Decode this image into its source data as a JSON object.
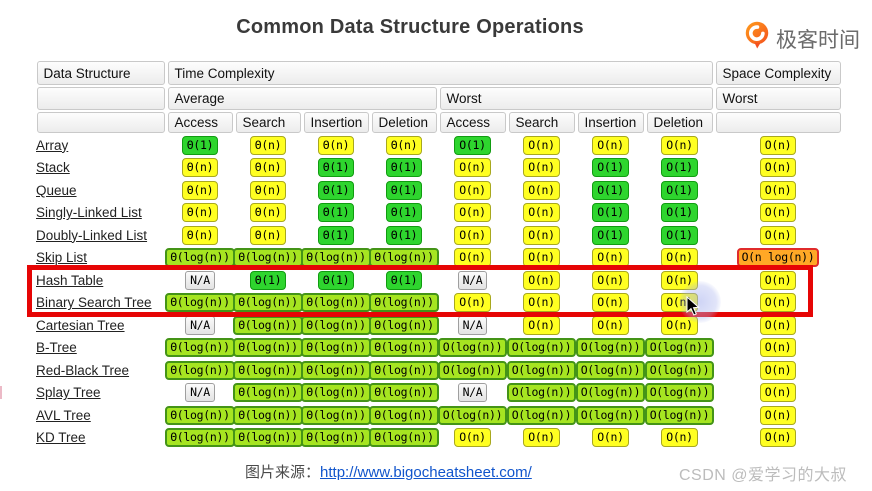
{
  "page": {
    "title": "Common Data Structure Operations",
    "brand": {
      "name": "极客时间",
      "icon": "geektime-logo",
      "color": "#f96300"
    },
    "footer": {
      "source_label": "图片来源：",
      "source_link": "http://www.bigocheatsheet.com/",
      "watermark": "CSDN @爱学习的大叔"
    }
  },
  "colors": {
    "constant_green": "#2ed52e",
    "linear_yellow": "#ffff21",
    "log_yellowgreen": "#a6e521",
    "nlogn_orange": "#ffa826",
    "na_gray": "#eeeeee",
    "highlight_red": "#e60505",
    "link_blue": "#1155cc"
  },
  "table": {
    "headers": {
      "data_structure": "Data Structure",
      "time_complexity": "Time Complexity",
      "space_complexity": "Space Complexity",
      "average": "Average",
      "worst_time": "Worst",
      "worst_space": "Worst",
      "ops": [
        "Access",
        "Search",
        "Insertion",
        "Deletion",
        "Access",
        "Search",
        "Insertion",
        "Deletion"
      ]
    },
    "rows": [
      {
        "name": "Array",
        "cells": [
          [
            "Θ(1)",
            "green"
          ],
          [
            "Θ(n)",
            "yellow"
          ],
          [
            "Θ(n)",
            "yellow"
          ],
          [
            "Θ(n)",
            "yellow"
          ],
          [
            "O(1)",
            "green"
          ],
          [
            "O(n)",
            "yellow"
          ],
          [
            "O(n)",
            "yellow"
          ],
          [
            "O(n)",
            "yellow"
          ],
          [
            "O(n)",
            "yellow"
          ]
        ]
      },
      {
        "name": "Stack",
        "cells": [
          [
            "Θ(n)",
            "yellow"
          ],
          [
            "Θ(n)",
            "yellow"
          ],
          [
            "Θ(1)",
            "green"
          ],
          [
            "Θ(1)",
            "green"
          ],
          [
            "O(n)",
            "yellow"
          ],
          [
            "O(n)",
            "yellow"
          ],
          [
            "O(1)",
            "green"
          ],
          [
            "O(1)",
            "green"
          ],
          [
            "O(n)",
            "yellow"
          ]
        ]
      },
      {
        "name": "Queue",
        "cells": [
          [
            "Θ(n)",
            "yellow"
          ],
          [
            "Θ(n)",
            "yellow"
          ],
          [
            "Θ(1)",
            "green"
          ],
          [
            "Θ(1)",
            "green"
          ],
          [
            "O(n)",
            "yellow"
          ],
          [
            "O(n)",
            "yellow"
          ],
          [
            "O(1)",
            "green"
          ],
          [
            "O(1)",
            "green"
          ],
          [
            "O(n)",
            "yellow"
          ]
        ]
      },
      {
        "name": "Singly-Linked List",
        "cells": [
          [
            "Θ(n)",
            "yellow"
          ],
          [
            "Θ(n)",
            "yellow"
          ],
          [
            "Θ(1)",
            "green"
          ],
          [
            "Θ(1)",
            "green"
          ],
          [
            "O(n)",
            "yellow"
          ],
          [
            "O(n)",
            "yellow"
          ],
          [
            "O(1)",
            "green"
          ],
          [
            "O(1)",
            "green"
          ],
          [
            "O(n)",
            "yellow"
          ]
        ]
      },
      {
        "name": "Doubly-Linked List",
        "cells": [
          [
            "Θ(n)",
            "yellow"
          ],
          [
            "Θ(n)",
            "yellow"
          ],
          [
            "Θ(1)",
            "green"
          ],
          [
            "Θ(1)",
            "green"
          ],
          [
            "O(n)",
            "yellow"
          ],
          [
            "O(n)",
            "yellow"
          ],
          [
            "O(1)",
            "green"
          ],
          [
            "O(1)",
            "green"
          ],
          [
            "O(n)",
            "yellow"
          ]
        ]
      },
      {
        "name": "Skip List",
        "cells": [
          [
            "Θ(log(n))",
            "lg"
          ],
          [
            "Θ(log(n))",
            "lg"
          ],
          [
            "Θ(log(n))",
            "lg"
          ],
          [
            "Θ(log(n))",
            "lg"
          ],
          [
            "O(n)",
            "yellow"
          ],
          [
            "O(n)",
            "yellow"
          ],
          [
            "O(n)",
            "yellow"
          ],
          [
            "O(n)",
            "yellow"
          ],
          [
            "O(n log(n))",
            "orange"
          ]
        ]
      },
      {
        "name": "Hash Table",
        "cells": [
          [
            "N/A",
            "gray"
          ],
          [
            "Θ(1)",
            "green"
          ],
          [
            "Θ(1)",
            "green"
          ],
          [
            "Θ(1)",
            "green"
          ],
          [
            "N/A",
            "gray"
          ],
          [
            "O(n)",
            "yellow"
          ],
          [
            "O(n)",
            "yellow"
          ],
          [
            "O(n)",
            "yellow"
          ],
          [
            "O(n)",
            "yellow"
          ]
        ]
      },
      {
        "name": "Binary Search Tree",
        "cells": [
          [
            "Θ(log(n))",
            "lg"
          ],
          [
            "Θ(log(n))",
            "lg"
          ],
          [
            "Θ(log(n))",
            "lg"
          ],
          [
            "Θ(log(n))",
            "lg"
          ],
          [
            "O(n)",
            "yellow"
          ],
          [
            "O(n)",
            "yellow"
          ],
          [
            "O(n)",
            "yellow"
          ],
          [
            "O(n)",
            "yellow"
          ],
          [
            "O(n)",
            "yellow"
          ]
        ]
      },
      {
        "name": "Cartesian Tree",
        "cells": [
          [
            "N/A",
            "gray"
          ],
          [
            "Θ(log(n))",
            "lg"
          ],
          [
            "Θ(log(n))",
            "lg"
          ],
          [
            "Θ(log(n))",
            "lg"
          ],
          [
            "N/A",
            "gray"
          ],
          [
            "O(n)",
            "yellow"
          ],
          [
            "O(n)",
            "yellow"
          ],
          [
            "O(n)",
            "yellow"
          ],
          [
            "O(n)",
            "yellow"
          ]
        ]
      },
      {
        "name": "B-Tree",
        "cells": [
          [
            "Θ(log(n))",
            "lg"
          ],
          [
            "Θ(log(n))",
            "lg"
          ],
          [
            "Θ(log(n))",
            "lg"
          ],
          [
            "Θ(log(n))",
            "lg"
          ],
          [
            "O(log(n))",
            "lg"
          ],
          [
            "O(log(n))",
            "lg"
          ],
          [
            "O(log(n))",
            "lg"
          ],
          [
            "O(log(n))",
            "lg"
          ],
          [
            "O(n)",
            "yellow"
          ]
        ]
      },
      {
        "name": "Red-Black Tree",
        "cells": [
          [
            "Θ(log(n))",
            "lg"
          ],
          [
            "Θ(log(n))",
            "lg"
          ],
          [
            "Θ(log(n))",
            "lg"
          ],
          [
            "Θ(log(n))",
            "lg"
          ],
          [
            "O(log(n))",
            "lg"
          ],
          [
            "O(log(n))",
            "lg"
          ],
          [
            "O(log(n))",
            "lg"
          ],
          [
            "O(log(n))",
            "lg"
          ],
          [
            "O(n)",
            "yellow"
          ]
        ]
      },
      {
        "name": "Splay Tree",
        "cells": [
          [
            "N/A",
            "gray"
          ],
          [
            "Θ(log(n))",
            "lg"
          ],
          [
            "Θ(log(n))",
            "lg"
          ],
          [
            "Θ(log(n))",
            "lg"
          ],
          [
            "N/A",
            "gray"
          ],
          [
            "O(log(n))",
            "lg"
          ],
          [
            "O(log(n))",
            "lg"
          ],
          [
            "O(log(n))",
            "lg"
          ],
          [
            "O(n)",
            "yellow"
          ]
        ]
      },
      {
        "name": "AVL Tree",
        "cells": [
          [
            "Θ(log(n))",
            "lg"
          ],
          [
            "Θ(log(n))",
            "lg"
          ],
          [
            "Θ(log(n))",
            "lg"
          ],
          [
            "Θ(log(n))",
            "lg"
          ],
          [
            "O(log(n))",
            "lg"
          ],
          [
            "O(log(n))",
            "lg"
          ],
          [
            "O(log(n))",
            "lg"
          ],
          [
            "O(log(n))",
            "lg"
          ],
          [
            "O(n)",
            "yellow"
          ]
        ]
      },
      {
        "name": "KD Tree",
        "cells": [
          [
            "Θ(log(n))",
            "lg"
          ],
          [
            "Θ(log(n))",
            "lg"
          ],
          [
            "Θ(log(n))",
            "lg"
          ],
          [
            "Θ(log(n))",
            "lg"
          ],
          [
            "O(n)",
            "yellow"
          ],
          [
            "O(n)",
            "yellow"
          ],
          [
            "O(n)",
            "yellow"
          ],
          [
            "O(n)",
            "yellow"
          ],
          [
            "O(n)",
            "yellow"
          ]
        ]
      }
    ],
    "highlighted_rows": [
      "Hash Table",
      "Binary Search Tree"
    ]
  }
}
